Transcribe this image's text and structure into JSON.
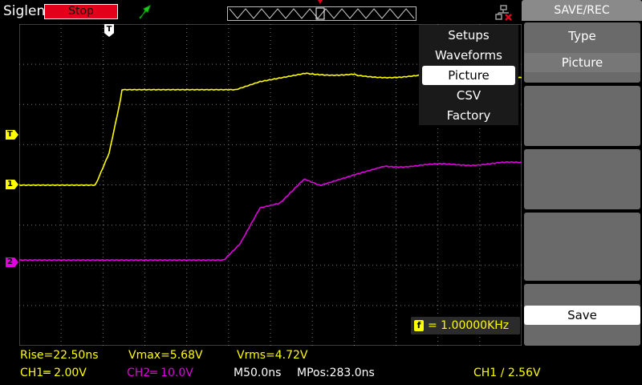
{
  "header": {
    "brand": "Siglent",
    "run_state": "Stop",
    "run_state_color": "#e3001b",
    "trigger_icon": "trigger-arrow-icon",
    "usb_icon": "usb-icon"
  },
  "menu": {
    "items": [
      "Setups",
      "Waveforms",
      "Picture",
      "CSV",
      "Factory"
    ],
    "selected": "Picture"
  },
  "side_panel": {
    "title": "SAVE/REC",
    "type_label": "Type",
    "type_value": "Picture",
    "save_label": "Save"
  },
  "markers": {
    "trigger_top": "T",
    "trigger_level": "T",
    "ch1": "1",
    "ch2": "2"
  },
  "frequency": {
    "badge": "f",
    "value": "= 1.00000KHz"
  },
  "measurements": {
    "rise": "Rise=22.50ns",
    "vmax": "Vmax=5.68V",
    "vrms": "Vrms=4.72V"
  },
  "status": {
    "ch1": "CH1═ 2.00V",
    "ch2": "CH2═ 10.0V",
    "timebase": "M50.0ns",
    "mpos": "MPos:283.0ns",
    "trigger": "CH1 ∕ 2.56V"
  },
  "colors": {
    "ch1": "#ffff00",
    "ch2": "#e000e0",
    "grid": "#7a7a7a"
  }
}
